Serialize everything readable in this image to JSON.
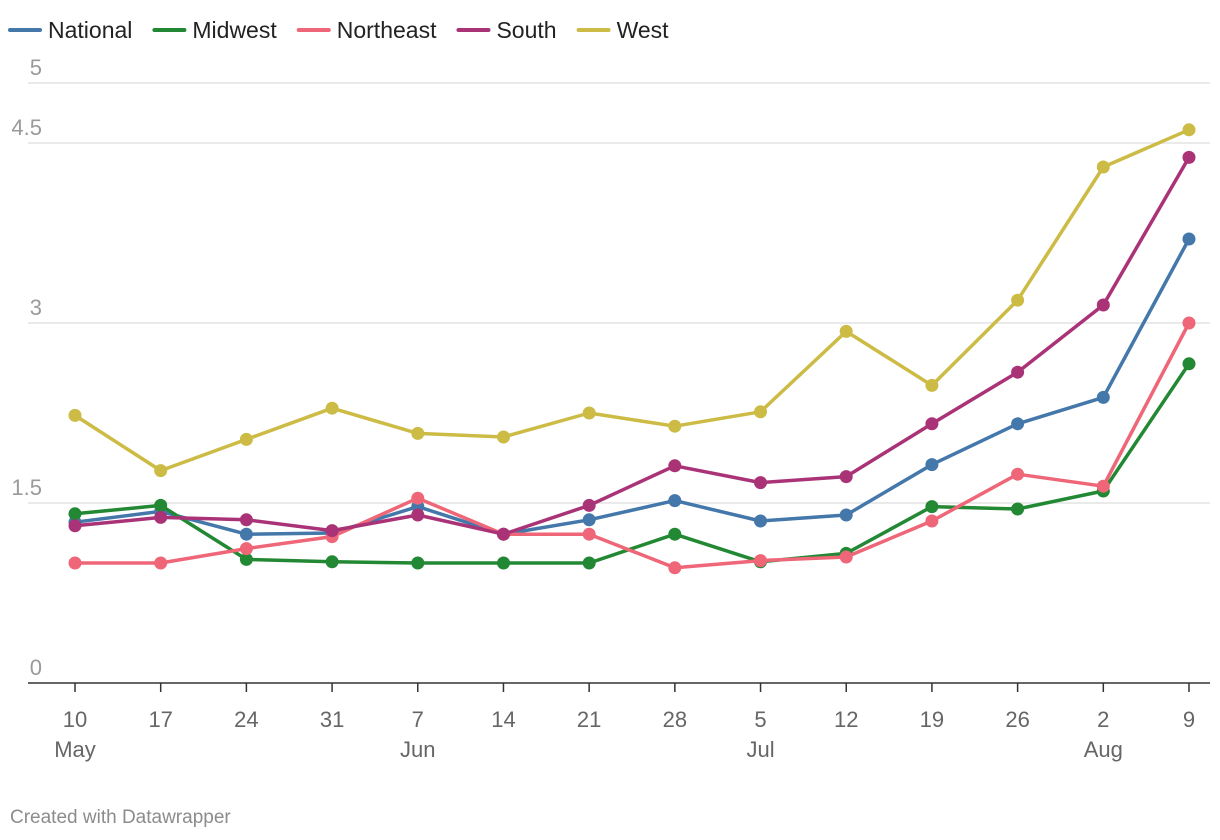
{
  "chart_data": {
    "type": "line",
    "title": "",
    "xlabel": "",
    "ylabel": "",
    "ylim": [
      0,
      5
    ],
    "y_ticks": [
      0,
      1.5,
      3,
      4.5,
      5
    ],
    "y_tick_labels": [
      "0",
      "1.5",
      "3",
      "4.5",
      "5"
    ],
    "legend_position": "top-left",
    "grid": true,
    "x_ticks": [
      {
        "day": "10",
        "month": "May"
      },
      {
        "day": "17",
        "month": ""
      },
      {
        "day": "24",
        "month": ""
      },
      {
        "day": "31",
        "month": ""
      },
      {
        "day": "7",
        "month": "Jun"
      },
      {
        "day": "14",
        "month": ""
      },
      {
        "day": "21",
        "month": ""
      },
      {
        "day": "28",
        "month": ""
      },
      {
        "day": "5",
        "month": "Jul"
      },
      {
        "day": "12",
        "month": ""
      },
      {
        "day": "19",
        "month": ""
      },
      {
        "day": "26",
        "month": ""
      },
      {
        "day": "2",
        "month": "Aug"
      },
      {
        "day": "9",
        "month": ""
      }
    ],
    "series": [
      {
        "name": "National",
        "color": "#4477aa",
        "values": [
          1.34,
          1.43,
          1.24,
          1.25,
          1.47,
          1.24,
          1.36,
          1.52,
          1.35,
          1.4,
          1.82,
          2.16,
          2.38,
          3.7
        ]
      },
      {
        "name": "Midwest",
        "color": "#228833",
        "values": [
          1.41,
          1.48,
          1.03,
          1.01,
          1.0,
          1.0,
          1.0,
          1.24,
          1.01,
          1.08,
          1.47,
          1.45,
          1.6,
          2.66
        ]
      },
      {
        "name": "Northeast",
        "color": "#ee6677",
        "values": [
          1.0,
          1.0,
          1.12,
          1.22,
          1.54,
          1.24,
          1.24,
          0.96,
          1.02,
          1.05,
          1.35,
          1.74,
          1.64,
          3.0
        ]
      },
      {
        "name": "South",
        "color": "#aa3377",
        "values": [
          1.31,
          1.38,
          1.36,
          1.27,
          1.4,
          1.24,
          1.48,
          1.81,
          1.67,
          1.72,
          2.16,
          2.59,
          3.15,
          4.38
        ]
      },
      {
        "name": "West",
        "color": "#ccbb44",
        "values": [
          2.23,
          1.77,
          2.03,
          2.29,
          2.08,
          2.05,
          2.25,
          2.14,
          2.26,
          2.93,
          2.48,
          3.19,
          4.3,
          4.61
        ]
      }
    ]
  },
  "footer": {
    "credit": "Created with Datawrapper"
  }
}
